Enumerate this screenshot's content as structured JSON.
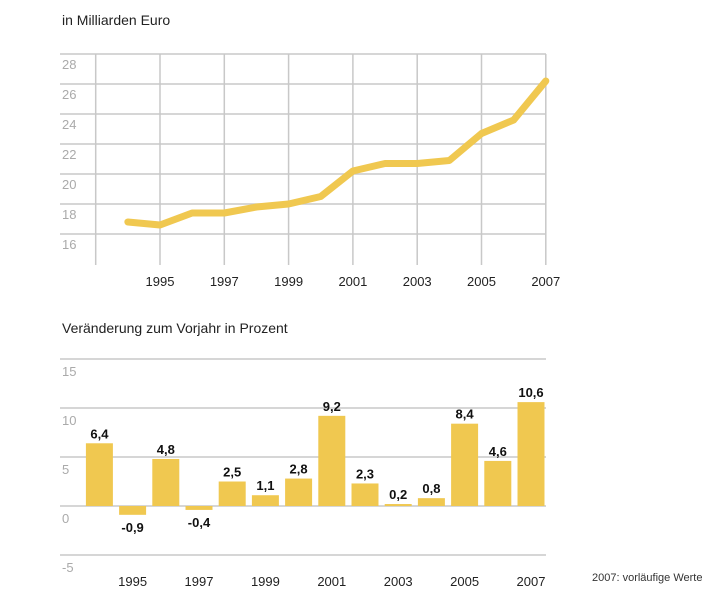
{
  "chart_data": [
    {
      "type": "line",
      "title": "in Milliarden Euro",
      "x": [
        1994,
        1995,
        1996,
        1997,
        1998,
        1999,
        2000,
        2001,
        2002,
        2003,
        2004,
        2005,
        2006,
        2007
      ],
      "values": [
        16.8,
        16.6,
        17.4,
        17.4,
        17.8,
        18.0,
        18.5,
        20.2,
        20.7,
        20.7,
        20.9,
        22.7,
        23.6,
        26.2
      ],
      "ylim": [
        14.5,
        28
      ],
      "yticks": [
        "16",
        "18",
        "20",
        "22",
        "24",
        "26",
        "28"
      ],
      "xticks": [
        "1995",
        "1997",
        "1999",
        "2001",
        "2003",
        "2005",
        "2007"
      ],
      "grid": true,
      "color": "#f0c850"
    },
    {
      "type": "bar",
      "title": "Veränderung zum Vorjahr in Prozent",
      "categories": [
        1994,
        1995,
        1996,
        1997,
        1998,
        1999,
        2000,
        2001,
        2002,
        2003,
        2004,
        2005,
        2006,
        2007
      ],
      "values": [
        6.4,
        -0.9,
        4.8,
        -0.4,
        2.5,
        1.1,
        2.8,
        9.2,
        2.3,
        0.2,
        0.8,
        8.4,
        4.6,
        10.6
      ],
      "data_labels": [
        "6,4",
        "-0,9",
        "4,8",
        "-0,4",
        "2,5",
        "1,1",
        "2,8",
        "9,2",
        "2,3",
        "0,2",
        "0,8",
        "8,4",
        "4,6",
        "10,6"
      ],
      "ylim": [
        -5,
        15
      ],
      "yticks": [
        "-5",
        "0",
        "5",
        "10",
        "15"
      ],
      "xticks": [
        "1995",
        "1997",
        "1999",
        "2001",
        "2003",
        "2005",
        "2007"
      ],
      "grid": true,
      "color": "#f0c850",
      "note": "2007: vorläufige Werte"
    }
  ]
}
